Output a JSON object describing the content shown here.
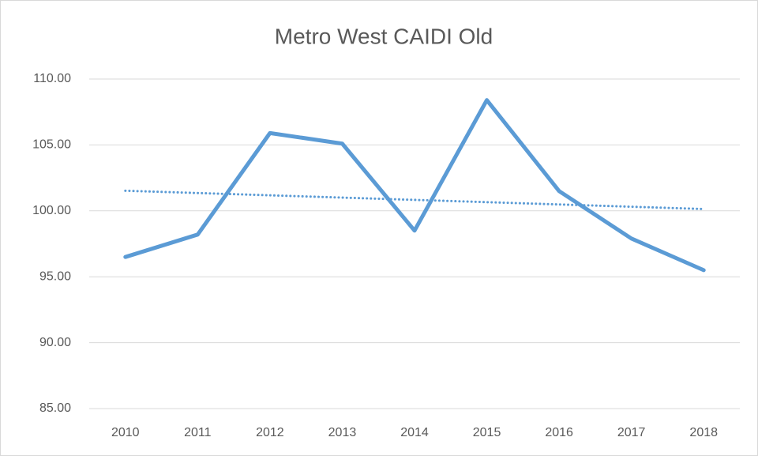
{
  "chart_data": {
    "type": "line",
    "title": "Metro West CAIDI Old",
    "categories": [
      "2010",
      "2011",
      "2012",
      "2013",
      "2014",
      "2015",
      "2016",
      "2017",
      "2018"
    ],
    "series": [
      {
        "color": "#5b9bd5",
        "values": [
          96.5,
          98.2,
          105.9,
          105.1,
          98.5,
          108.4,
          101.5,
          97.9,
          95.5
        ]
      }
    ],
    "trendline": "linear",
    "ylim": [
      85,
      110
    ],
    "yticks": [
      {
        "value": 85,
        "label": "85.00"
      },
      {
        "value": 90,
        "label": "90.00"
      },
      {
        "value": 95,
        "label": "95.00"
      },
      {
        "value": 100,
        "label": "100.00"
      },
      {
        "value": 105,
        "label": "105.00"
      },
      {
        "value": 110,
        "label": "110.00"
      }
    ],
    "grid": true
  }
}
